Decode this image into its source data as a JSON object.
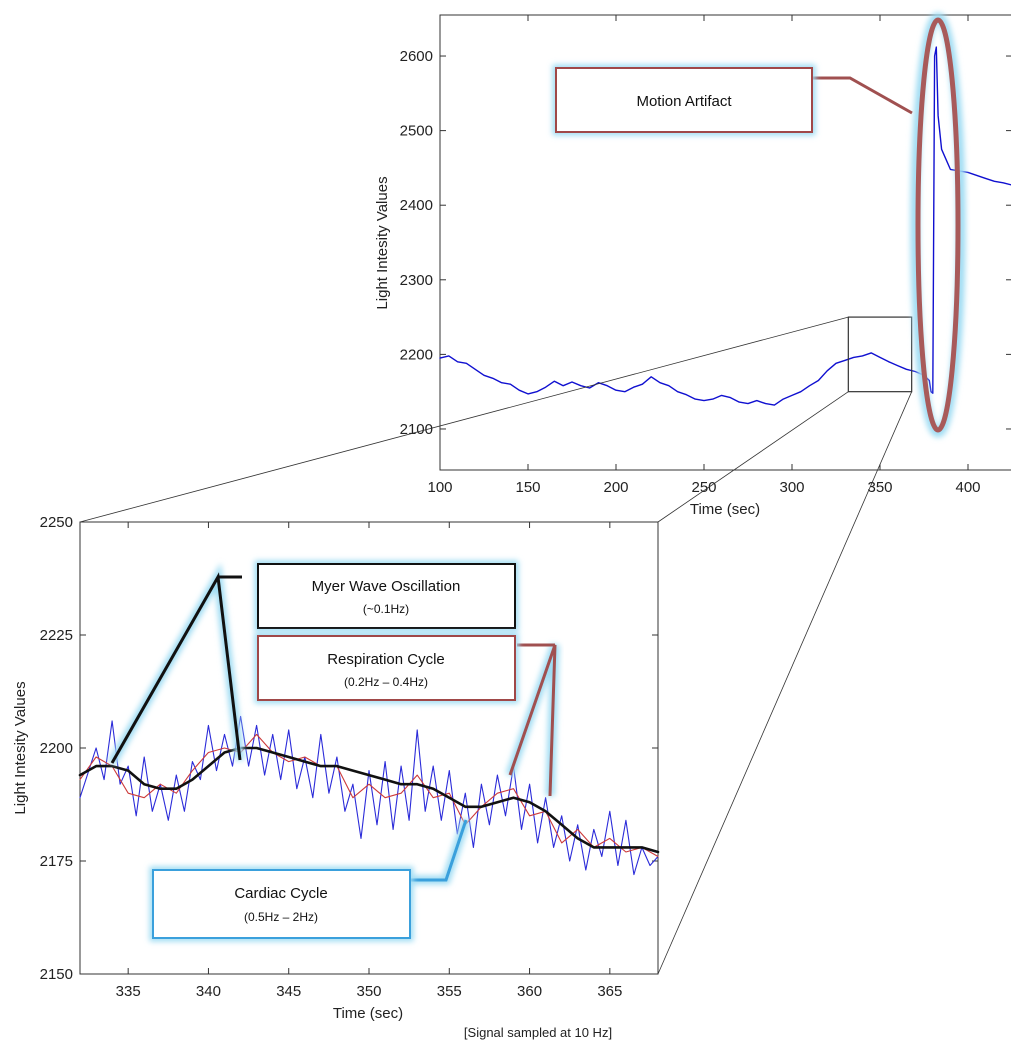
{
  "chart_data": [
    {
      "id": "overview",
      "type": "line",
      "ylabel": "Light Intesity Values",
      "xlabel": "Time (sec)",
      "xlim": [
        100,
        425
      ],
      "ylim": [
        2045,
        2655
      ],
      "xticks": [
        100,
        150,
        200,
        250,
        300,
        350,
        400
      ],
      "yticks": [
        2100,
        2200,
        2300,
        2400,
        2500,
        2600
      ],
      "series": [
        {
          "color": "#1010d0",
          "x": [
            100,
            105,
            110,
            115,
            120,
            125,
            130,
            135,
            140,
            145,
            150,
            155,
            160,
            165,
            170,
            175,
            180,
            185,
            190,
            195,
            200,
            205,
            210,
            215,
            220,
            225,
            230,
            235,
            240,
            245,
            250,
            255,
            260,
            265,
            270,
            275,
            280,
            285,
            290,
            295,
            300,
            305,
            310,
            315,
            320,
            325,
            330,
            335,
            340,
            345,
            350,
            355,
            360,
            365,
            370,
            375,
            378,
            379,
            380,
            381,
            382,
            383,
            385,
            390,
            395,
            400,
            405,
            410,
            415,
            420,
            425
          ],
          "y": [
            2195,
            2198,
            2190,
            2188,
            2180,
            2172,
            2168,
            2162,
            2160,
            2152,
            2147,
            2150,
            2156,
            2164,
            2158,
            2163,
            2158,
            2155,
            2162,
            2158,
            2152,
            2150,
            2156,
            2160,
            2170,
            2162,
            2158,
            2150,
            2146,
            2140,
            2138,
            2140,
            2145,
            2142,
            2136,
            2134,
            2138,
            2134,
            2132,
            2140,
            2145,
            2150,
            2158,
            2165,
            2178,
            2188,
            2192,
            2196,
            2198,
            2202,
            2196,
            2190,
            2185,
            2180,
            2177,
            2172,
            2165,
            2150,
            2148,
            2600,
            2612,
            2520,
            2475,
            2448,
            2446,
            2444,
            2440,
            2436,
            2432,
            2430,
            2427
          ]
        }
      ],
      "zoom_box": {
        "x": [
          332,
          368
        ],
        "y": [
          2150,
          2250
        ]
      }
    },
    {
      "id": "zoom",
      "type": "line",
      "ylabel": "Light Intesity Values",
      "xlabel": "Time (sec)",
      "xlim": [
        332,
        368
      ],
      "ylim": [
        2150,
        2250
      ],
      "xticks": [
        335,
        340,
        345,
        350,
        355,
        360,
        365
      ],
      "yticks": [
        2150,
        2175,
        2200,
        2225,
        2250
      ],
      "series": [
        {
          "name": "Cardiac Cycle",
          "color": "#2b2bd9",
          "x": [
            332,
            333,
            333.5,
            334,
            334.5,
            335,
            335.5,
            336,
            336.5,
            337,
            337.5,
            338,
            338.5,
            339,
            339.5,
            340,
            340.5,
            341,
            341.5,
            342,
            342.5,
            343,
            343.5,
            344,
            344.5,
            345,
            345.5,
            346,
            346.5,
            347,
            347.5,
            348,
            348.5,
            349,
            349.5,
            350,
            350.5,
            351,
            351.5,
            352,
            352.5,
            353,
            353.5,
            354,
            354.5,
            355,
            355.5,
            356,
            356.5,
            357,
            357.5,
            358,
            358.5,
            359,
            359.5,
            360,
            360.5,
            361,
            361.5,
            362,
            362.5,
            363,
            363.5,
            364,
            364.5,
            365,
            365.5,
            366,
            366.5,
            367,
            367.5,
            368
          ],
          "y": [
            2189,
            2200,
            2193,
            2206,
            2192,
            2196,
            2185,
            2198,
            2186,
            2192,
            2184,
            2194,
            2186,
            2197,
            2193,
            2205,
            2195,
            2203,
            2196,
            2207,
            2196,
            2205,
            2194,
            2203,
            2193,
            2204,
            2191,
            2198,
            2189,
            2203,
            2190,
            2198,
            2186,
            2192,
            2180,
            2195,
            2183,
            2197,
            2182,
            2196,
            2184,
            2204,
            2186,
            2196,
            2184,
            2195,
            2181,
            2190,
            2178,
            2192,
            2183,
            2194,
            2185,
            2196,
            2182,
            2192,
            2179,
            2189,
            2178,
            2185,
            2175,
            2183,
            2173,
            2182,
            2176,
            2186,
            2174,
            2184,
            2172,
            2178,
            2174,
            2176
          ]
        },
        {
          "name": "Respiration Cycle",
          "color": "#cc3a3a",
          "x": [
            332,
            333,
            334,
            335,
            336,
            337,
            338,
            339,
            340,
            341,
            342,
            343,
            344,
            345,
            346,
            347,
            348,
            349,
            350,
            351,
            352,
            353,
            354,
            355,
            356,
            357,
            358,
            359,
            360,
            361,
            362,
            363,
            364,
            365,
            366,
            367,
            368
          ],
          "y": [
            2193,
            2198,
            2196,
            2190,
            2189,
            2192,
            2190,
            2195,
            2199,
            2200,
            2199,
            2203,
            2199,
            2197,
            2198,
            2196,
            2196,
            2189,
            2192,
            2189,
            2190,
            2194,
            2189,
            2190,
            2183,
            2187,
            2190,
            2191,
            2185,
            2186,
            2179,
            2182,
            2178,
            2180,
            2177,
            2178,
            2176
          ]
        },
        {
          "name": "Myer Wave Oscillation",
          "color": "#111111",
          "x": [
            332,
            333,
            334,
            335,
            336,
            337,
            338,
            339,
            340,
            341,
            342,
            343,
            344,
            345,
            346,
            347,
            348,
            349,
            350,
            351,
            352,
            353,
            354,
            355,
            356,
            357,
            358,
            359,
            360,
            361,
            362,
            363,
            364,
            365,
            366,
            367,
            368
          ],
          "y": [
            2194,
            2196,
            2196,
            2195,
            2192,
            2191,
            2191,
            2193,
            2196,
            2199,
            2200,
            2200,
            2199,
            2198,
            2197,
            2196,
            2196,
            2195,
            2194,
            2193,
            2192,
            2192,
            2191,
            2189,
            2187,
            2187,
            2188,
            2189,
            2188,
            2186,
            2183,
            2180,
            2178,
            2178,
            2178,
            2178,
            2177
          ]
        }
      ]
    }
  ],
  "callouts": {
    "motion": {
      "title": "Motion Artifact"
    },
    "myer": {
      "title": "Myer Wave Oscillation",
      "sub": "(~0.1Hz)"
    },
    "respiration": {
      "title": "Respiration Cycle",
      "sub": "(0.2Hz – 0.4Hz)"
    },
    "cardiac": {
      "title": "Cardiac Cycle",
      "sub": "(0.5Hz – 2Hz)"
    }
  },
  "footnote": "[Signal sampled at 10 Hz]",
  "colors": {
    "glow": "#9fdcf3",
    "callout_red_border": "#a04848",
    "callout_dark_border": "#111111",
    "callout_blue_border": "#3aa0dc",
    "ellipse_fill": "#a85a5a"
  }
}
